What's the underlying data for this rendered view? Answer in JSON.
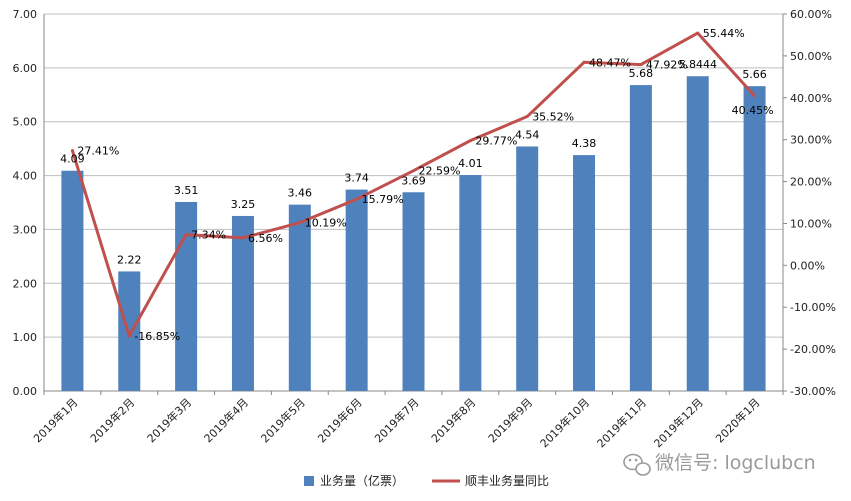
{
  "chart_data": {
    "type": "bar",
    "categories": [
      "2019年1月",
      "2019年2月",
      "2019年3月",
      "2019年4月",
      "2019年5月",
      "2019年6月",
      "2019年7月",
      "2019年8月",
      "2019年9月",
      "2019年10月",
      "2019年11月",
      "2019年12月",
      "2020年1月"
    ],
    "series": [
      {
        "name": "业务量（亿票）",
        "type": "bar",
        "axis": "left",
        "color": "#4f81bd",
        "values": [
          4.09,
          2.22,
          3.51,
          3.25,
          3.46,
          3.74,
          3.69,
          4.01,
          4.54,
          4.38,
          5.68,
          5.8444,
          5.66
        ],
        "labels": [
          "4.09",
          "2.22",
          "3.51",
          "3.25",
          "3.46",
          "3.74",
          "3.69",
          "4.01",
          "4.54",
          "4.38",
          "5.68",
          "5.8444",
          "5.66"
        ]
      },
      {
        "name": "顺丰业务量同比",
        "type": "line",
        "axis": "right",
        "color": "#c0504d",
        "values": [
          27.41,
          -16.85,
          7.34,
          6.56,
          10.19,
          15.79,
          22.59,
          29.77,
          35.52,
          48.47,
          47.92,
          55.44,
          40.45
        ],
        "labels": [
          "27.41%",
          "-16.85%",
          "7.34%",
          "6.56%",
          "10.19%",
          "15.79%",
          "22.59%",
          "29.77%",
          "35.52%",
          "48.47%",
          "47.92%",
          "55.44%",
          "40.45%"
        ]
      }
    ],
    "y_left": {
      "min": 0,
      "max": 7,
      "ticks": [
        "0.00",
        "1.00",
        "2.00",
        "3.00",
        "4.00",
        "5.00",
        "6.00",
        "7.00"
      ]
    },
    "y_right": {
      "min": -30,
      "max": 60,
      "ticks": [
        "-30.00%",
        "-20.00%",
        "-10.00%",
        "0.00%",
        "10.00%",
        "20.00%",
        "30.00%",
        "40.00%",
        "50.00%",
        "60.00%"
      ]
    },
    "grid": true,
    "legend": "bottom",
    "watermark": {
      "text": "微信号: logclubcn",
      "icon": "wechat-icon"
    }
  }
}
